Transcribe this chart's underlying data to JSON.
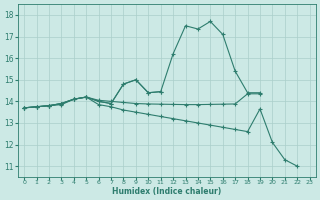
{
  "title": "",
  "xlabel": "Humidex (Indice chaleur)",
  "ylabel": "",
  "background_color": "#cce9e5",
  "grid_color": "#aacfca",
  "line_color": "#2e7d6e",
  "xlim": [
    -0.5,
    23.5
  ],
  "ylim": [
    10.5,
    18.5
  ],
  "xticks": [
    0,
    1,
    2,
    3,
    4,
    5,
    6,
    7,
    8,
    9,
    10,
    11,
    12,
    13,
    14,
    15,
    16,
    17,
    18,
    19,
    20,
    21,
    22,
    23
  ],
  "yticks": [
    11,
    12,
    13,
    14,
    15,
    16,
    17,
    18
  ],
  "series1_x": [
    0,
    1,
    2,
    3,
    4,
    5,
    6,
    7,
    8,
    9,
    10,
    11,
    12,
    13,
    14,
    15,
    16,
    17,
    18,
    19
  ],
  "series1_y": [
    13.7,
    13.75,
    13.8,
    13.9,
    14.1,
    14.2,
    14.0,
    13.9,
    14.8,
    15.0,
    14.4,
    14.45,
    16.2,
    17.5,
    17.35,
    17.7,
    17.1,
    15.4,
    14.4,
    14.4
  ],
  "series2_x": [
    0,
    1,
    2,
    3,
    4,
    5,
    6,
    7,
    8,
    9,
    10,
    11,
    12,
    13,
    14,
    15,
    16,
    17,
    18,
    19,
    20,
    21,
    22
  ],
  "series2_y": [
    13.7,
    13.75,
    13.8,
    13.9,
    14.1,
    14.2,
    13.85,
    13.75,
    13.6,
    13.5,
    13.4,
    13.3,
    13.2,
    13.1,
    13.0,
    12.9,
    12.8,
    12.7,
    12.6,
    13.65,
    12.1,
    11.3,
    11.0
  ],
  "series3_x": [
    0,
    1,
    2,
    3,
    4,
    5,
    6,
    7,
    8,
    9,
    10,
    11,
    12,
    13,
    14,
    15,
    16,
    17,
    18,
    19
  ],
  "series3_y": [
    13.7,
    13.75,
    13.8,
    13.9,
    14.1,
    14.2,
    14.05,
    14.0,
    13.95,
    13.9,
    13.88,
    13.87,
    13.86,
    13.85,
    13.85,
    13.86,
    13.87,
    13.88,
    14.35,
    14.35
  ],
  "series4_x": [
    0,
    1,
    2,
    3,
    4,
    5,
    6,
    7,
    8,
    9,
    10,
    11
  ],
  "series4_y": [
    13.7,
    13.75,
    13.8,
    13.85,
    14.1,
    14.2,
    14.0,
    13.9,
    14.8,
    15.0,
    14.4,
    14.45
  ]
}
